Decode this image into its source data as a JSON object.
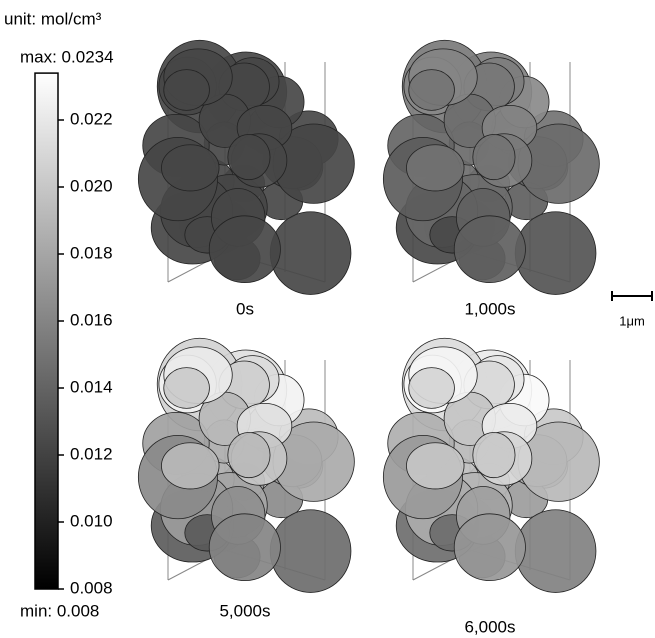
{
  "colorbar": {
    "unit": "unit: mol/cm³",
    "max_label": "max: 0.0234",
    "min_label": "min: 0.008",
    "lim": [
      0.008,
      0.0234
    ],
    "ticks": [
      0.008,
      {
        "value": 0.01,
        "label": "0.010"
      },
      0.012,
      0.014,
      0.016,
      0.018,
      {
        "value": 0.02,
        "label": "0.020"
      },
      0.022
    ]
  },
  "panels": [
    {
      "label": "0s"
    },
    {
      "label": "1,000s"
    },
    {
      "label": "5,000s"
    },
    {
      "label": "6,000s"
    }
  ],
  "scale_bar": {
    "label": "1μm"
  }
}
